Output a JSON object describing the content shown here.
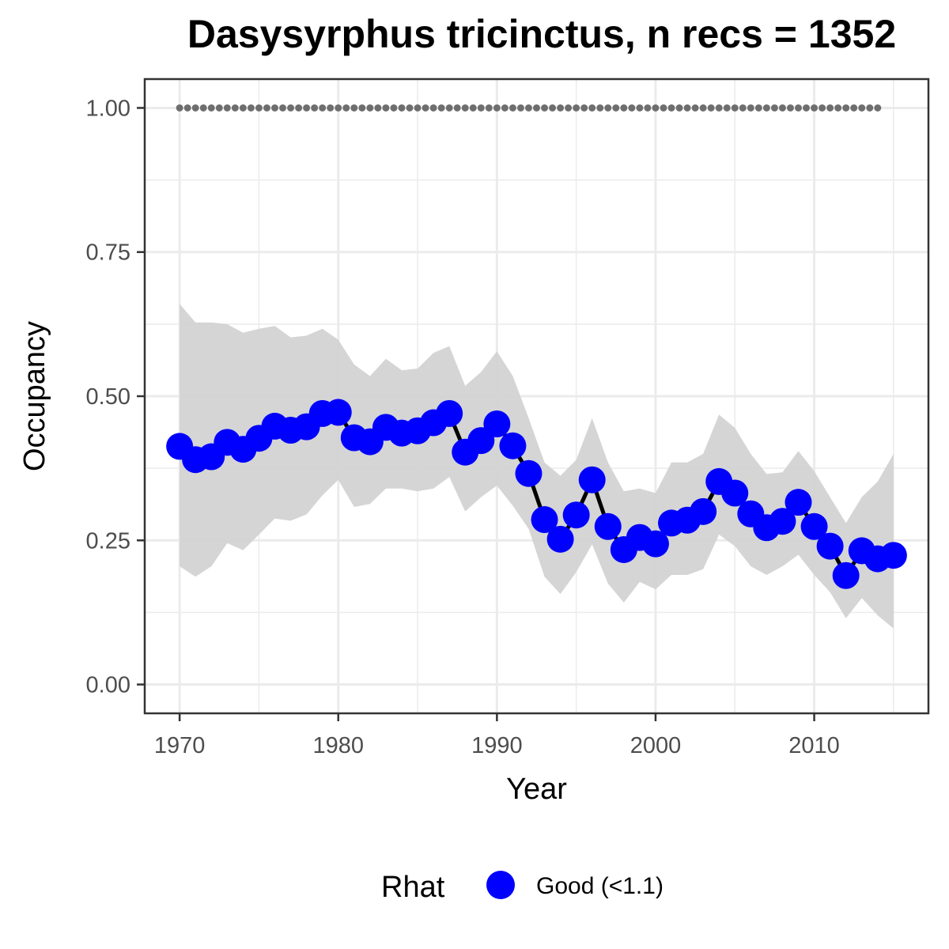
{
  "chart_data": {
    "type": "line",
    "title": "Dasysyrphus tricinctus, n recs = 1352",
    "xlabel": "Year",
    "ylabel": "Occupancy",
    "xlim": [
      1967.8,
      1017.2
    ],
    "ylim": [
      -0.05,
      1.05
    ],
    "x_ticks": [
      1970,
      1980,
      1990,
      2000,
      2010
    ],
    "x_tick_labels": [
      "1970",
      "1980",
      "1990",
      "2000",
      "2010"
    ],
    "y_ticks": [
      0.0,
      0.25,
      0.5,
      0.75,
      1.0
    ],
    "y_tick_labels": [
      "0.00",
      "0.25",
      "0.50",
      "0.75",
      "1.00"
    ],
    "grid": true,
    "legend_position": "bottom",
    "legend": {
      "title": "Rhat",
      "entries": [
        {
          "label": "Good (<1.1)",
          "color": "#0000ff"
        }
      ]
    },
    "colors": {
      "points": "#0000ff",
      "line": "#000000",
      "ribbon": "#d3d3d3",
      "reference": "#6e6e6e",
      "grid": "#ebebeb",
      "panel_border": "#333333"
    },
    "reference_line": {
      "y": 1.0,
      "x_start": 1970,
      "x_end": 2014,
      "style": "dotted"
    },
    "series": [
      {
        "years": [
          1970,
          1971,
          1972,
          1973,
          1974,
          1975,
          1976,
          1977,
          1978,
          1979,
          1980,
          1981,
          1982,
          1983,
          1984,
          1985,
          1986,
          1987,
          1988,
          1989,
          1990,
          1991,
          1992,
          1993,
          1994,
          1995,
          1996,
          1997,
          1998,
          1999,
          2000,
          2001,
          2002,
          2003,
          2004,
          2005,
          2006,
          2007,
          2008,
          2009,
          2010,
          2011,
          2012,
          2013,
          2014,
          2015
        ],
        "mean": [
          0.413,
          0.39,
          0.395,
          0.42,
          0.408,
          0.427,
          0.448,
          0.441,
          0.447,
          0.47,
          0.472,
          0.428,
          0.421,
          0.446,
          0.436,
          0.44,
          0.454,
          0.47,
          0.403,
          0.423,
          0.452,
          0.414,
          0.366,
          0.286,
          0.252,
          0.294,
          0.355,
          0.274,
          0.234,
          0.255,
          0.244,
          0.28,
          0.285,
          0.3,
          0.352,
          0.332,
          0.296,
          0.272,
          0.283,
          0.316,
          0.274,
          0.24,
          0.189,
          0.232,
          0.218,
          0.224
        ],
        "lower": [
          0.205,
          0.187,
          0.205,
          0.245,
          0.233,
          0.26,
          0.288,
          0.284,
          0.295,
          0.328,
          0.355,
          0.308,
          0.313,
          0.34,
          0.34,
          0.335,
          0.34,
          0.36,
          0.3,
          0.325,
          0.345,
          0.31,
          0.27,
          0.187,
          0.157,
          0.195,
          0.243,
          0.175,
          0.142,
          0.178,
          0.165,
          0.19,
          0.19,
          0.2,
          0.26,
          0.24,
          0.205,
          0.19,
          0.205,
          0.225,
          0.19,
          0.16,
          0.115,
          0.15,
          0.12,
          0.097
        ],
        "upper": [
          0.66,
          0.628,
          0.628,
          0.625,
          0.61,
          0.617,
          0.622,
          0.602,
          0.605,
          0.617,
          0.598,
          0.555,
          0.535,
          0.565,
          0.545,
          0.548,
          0.575,
          0.587,
          0.518,
          0.542,
          0.578,
          0.535,
          0.462,
          0.385,
          0.362,
          0.39,
          0.462,
          0.385,
          0.335,
          0.34,
          0.332,
          0.385,
          0.385,
          0.4,
          0.468,
          0.445,
          0.4,
          0.365,
          0.368,
          0.405,
          0.37,
          0.325,
          0.28,
          0.325,
          0.352,
          0.4
        ]
      }
    ]
  }
}
